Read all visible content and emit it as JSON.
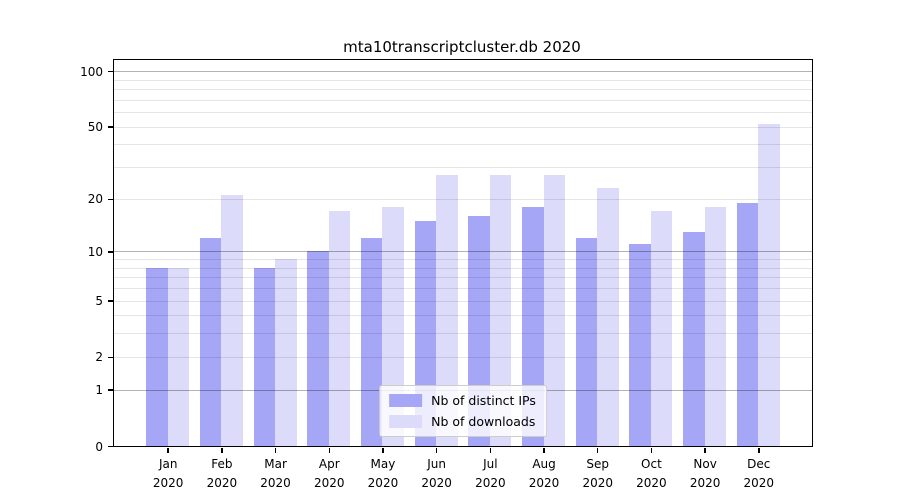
{
  "chart_data": {
    "type": "bar",
    "title": "mta10transcriptcluster.db 2020",
    "categories": [
      "Jan",
      "Feb",
      "Mar",
      "Apr",
      "May",
      "Jun",
      "Jul",
      "Aug",
      "Sep",
      "Oct",
      "Nov",
      "Dec"
    ],
    "category_year": "2020",
    "series": [
      {
        "name": "Nb of distinct IPs",
        "color": "#a6a6f7",
        "values": [
          8,
          12,
          8,
          10,
          12,
          15,
          16,
          18,
          12,
          11,
          13,
          19
        ]
      },
      {
        "name": "Nb of downloads",
        "color": "#dcdcfa",
        "values": [
          8,
          21,
          9,
          17,
          18,
          27,
          27,
          27,
          23,
          17,
          18,
          52
        ]
      }
    ],
    "yscale": "log1p",
    "ylim": [
      0,
      115
    ],
    "y_ticks": [
      0,
      1,
      2,
      5,
      10,
      20,
      50,
      100
    ],
    "y_major_gridlines": [
      1,
      10,
      100
    ],
    "y_minor_gridlines": [
      2,
      3,
      4,
      5,
      6,
      7,
      8,
      9,
      20,
      30,
      40,
      50,
      60,
      70,
      80,
      90
    ],
    "xlabel": "",
    "ylabel": "",
    "grid": true,
    "legend_position": "lower center"
  },
  "colors": {
    "bar_distinct_ips": "#a6a6f7",
    "bar_downloads": "#dcdcfa",
    "major_grid": "rgba(0,0,0,0.30)",
    "minor_grid": "rgba(0,0,0,0.10)",
    "spine": "#000000",
    "background": "#ffffff"
  }
}
